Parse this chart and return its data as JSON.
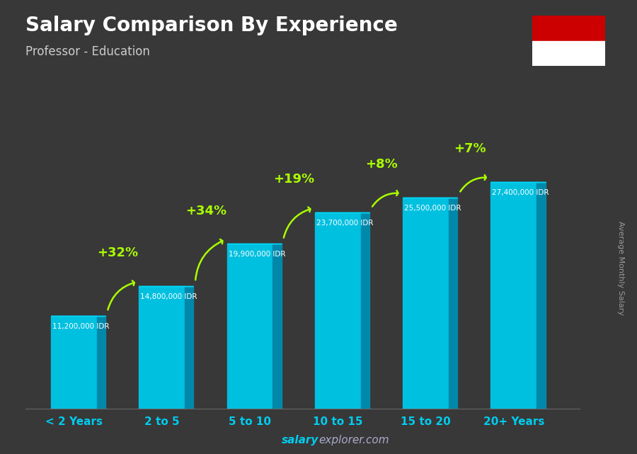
{
  "title": "Salary Comparison By Experience",
  "subtitle": "Professor - Education",
  "categories": [
    "< 2 Years",
    "2 to 5",
    "5 to 10",
    "10 to 15",
    "15 to 20",
    "20+ Years"
  ],
  "values": [
    11200000,
    14800000,
    19900000,
    23700000,
    25500000,
    27400000
  ],
  "value_labels": [
    "11,200,000 IDR",
    "14,800,000 IDR",
    "19,900,000 IDR",
    "23,700,000 IDR",
    "25,500,000 IDR",
    "27,400,000 IDR"
  ],
  "pct_labels": [
    "+32%",
    "+34%",
    "+19%",
    "+8%",
    "+7%"
  ],
  "face_color": "#00c0e0",
  "side_color": "#0088aa",
  "top_color": "#00d8f8",
  "bg_color": "#383838",
  "title_color": "#ffffff",
  "subtitle_color": "#cccccc",
  "label_color": "#00ccee",
  "pct_color": "#aaff00",
  "value_label_color": "#ffffff",
  "footer_salary_color": "#00ccee",
  "footer_explorer_color": "#aaaacc",
  "ylabel": "Average Monthly Salary",
  "flag_red": "#cc0000",
  "flag_white": "#ffffff",
  "ylim_max": 34000000,
  "bar_width": 0.52,
  "bar_depth": 0.1
}
